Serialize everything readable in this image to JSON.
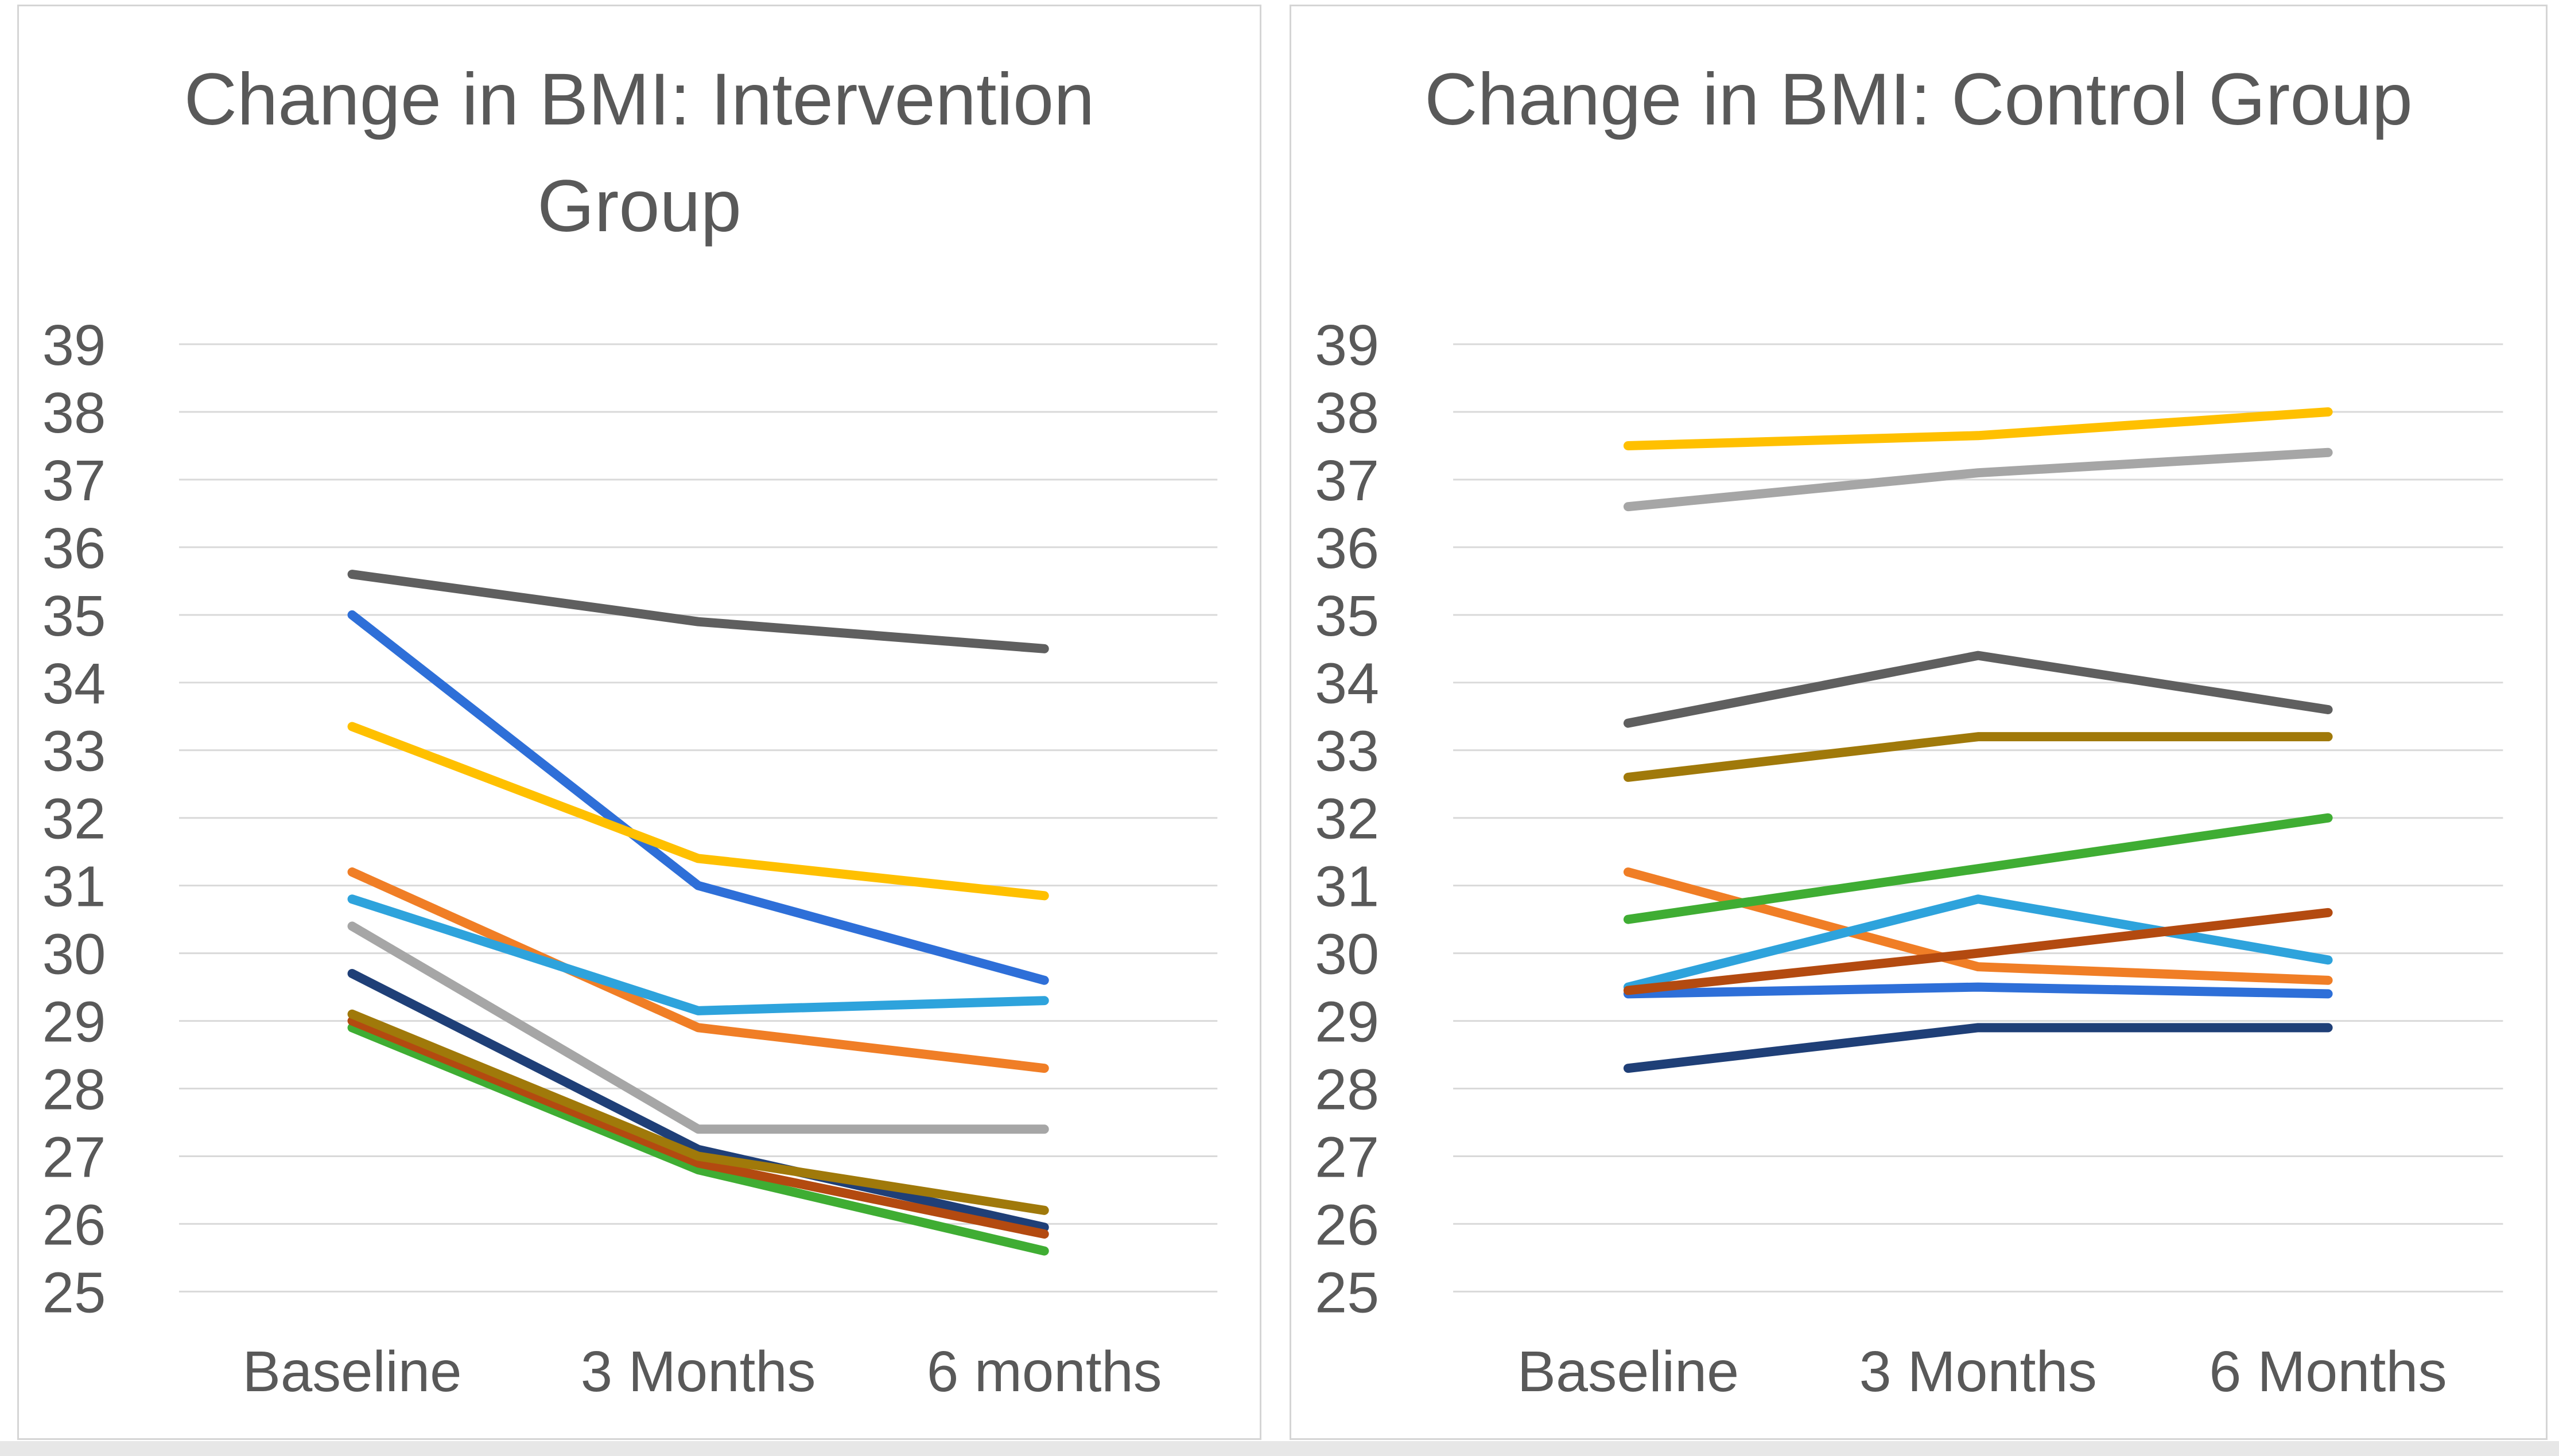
{
  "window": {
    "background": "#FFFFFF",
    "panel_border_color": "#D5D5D5",
    "bottom_bar_color": "#E7E7E7"
  },
  "chart_data": [
    {
      "type": "line",
      "title": "Change in BMI: Intervention Group",
      "categories": [
        "Baseline",
        "3 Months",
        "6 months"
      ],
      "xlabel": "",
      "ylabel": "",
      "ylim": [
        25,
        39
      ],
      "y_ticks": [
        39,
        38,
        37,
        36,
        35,
        34,
        33,
        32,
        31,
        30,
        29,
        28,
        27,
        26,
        25
      ],
      "grid": true,
      "legend": "none",
      "text_color": "#595959",
      "grid_color": "#D9D9D9",
      "series": [
        {
          "name": "blue",
          "color": "#2E6FD8",
          "values": [
            35.0,
            31.0,
            29.6
          ]
        },
        {
          "name": "orange",
          "color": "#F07E26",
          "values": [
            31.2,
            28.9,
            28.3
          ]
        },
        {
          "name": "gray",
          "color": "#A6A6A6",
          "values": [
            30.4,
            27.4,
            27.4
          ]
        },
        {
          "name": "gold",
          "color": "#FFC000",
          "values": [
            33.35,
            31.4,
            30.85
          ]
        },
        {
          "name": "light-blue",
          "color": "#2EA3DC",
          "values": [
            30.8,
            29.15,
            29.3
          ]
        },
        {
          "name": "green",
          "color": "#3FAD33",
          "values": [
            28.9,
            26.8,
            25.6
          ]
        },
        {
          "name": "dark-blue",
          "color": "#1F3F77",
          "values": [
            29.7,
            27.1,
            25.95
          ]
        },
        {
          "name": "dark-orange",
          "color": "#B34A10",
          "values": [
            29.0,
            26.9,
            25.85
          ]
        },
        {
          "name": "dark-gray",
          "color": "#5F5F5F",
          "values": [
            35.6,
            34.9,
            34.5
          ]
        },
        {
          "name": "dark-gold",
          "color": "#A0790A",
          "values": [
            29.1,
            27.0,
            26.2
          ]
        }
      ]
    },
    {
      "type": "line",
      "title": "Change in BMI: Control Group",
      "categories": [
        "Baseline",
        "3 Months",
        "6 Months"
      ],
      "xlabel": "",
      "ylabel": "",
      "ylim": [
        25,
        39
      ],
      "y_ticks": [
        39,
        38,
        37,
        36,
        35,
        34,
        33,
        32,
        31,
        30,
        29,
        28,
        27,
        26,
        25
      ],
      "grid": true,
      "legend": "none",
      "text_color": "#595959",
      "grid_color": "#D9D9D9",
      "series": [
        {
          "name": "blue",
          "color": "#2E6FD8",
          "values": [
            29.4,
            29.5,
            29.4
          ]
        },
        {
          "name": "orange",
          "color": "#F07E26",
          "values": [
            31.2,
            29.8,
            29.6
          ]
        },
        {
          "name": "gray",
          "color": "#A6A6A6",
          "values": [
            36.6,
            37.1,
            37.4
          ]
        },
        {
          "name": "gold",
          "color": "#FFC000",
          "values": [
            37.5,
            37.65,
            38.0
          ]
        },
        {
          "name": "light-blue",
          "color": "#2EA3DC",
          "values": [
            29.5,
            30.8,
            29.9
          ]
        },
        {
          "name": "green",
          "color": "#3FAD33",
          "values": [
            30.5,
            31.25,
            32.0
          ]
        },
        {
          "name": "dark-blue",
          "color": "#1F3F77",
          "values": [
            28.3,
            28.9,
            28.9
          ]
        },
        {
          "name": "dark-orange",
          "color": "#B34A10",
          "values": [
            29.45,
            30.0,
            30.6
          ]
        },
        {
          "name": "dark-gray",
          "color": "#5F5F5F",
          "values": [
            33.4,
            34.4,
            33.6
          ]
        },
        {
          "name": "dark-gold",
          "color": "#A0790A",
          "values": [
            32.6,
            33.2,
            33.2
          ]
        }
      ]
    }
  ]
}
